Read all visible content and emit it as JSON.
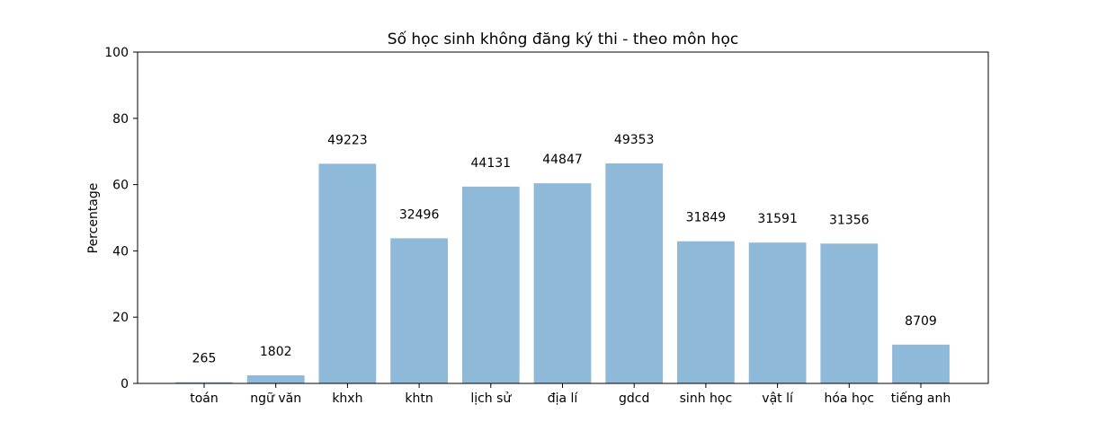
{
  "chart_data": {
    "type": "bar",
    "title": "Số học sinh không đăng ký thi - theo môn học",
    "xlabel": "",
    "ylabel": "Percentage",
    "ylim": [
      0,
      100
    ],
    "yticks": [
      0,
      20,
      40,
      60,
      80,
      100
    ],
    "categories": [
      "toán",
      "ngữ văn",
      "khxh",
      "khtn",
      "lịch sử",
      "địa lí",
      "gdcd",
      "sinh học",
      "vật lí",
      "hóa học",
      "tiếng anh"
    ],
    "values": [
      0.36,
      2.43,
      66.3,
      43.8,
      59.4,
      60.4,
      66.4,
      42.9,
      42.5,
      42.2,
      11.7
    ],
    "data_labels": [
      "265",
      "1802",
      "49223",
      "32496",
      "44131",
      "44847",
      "49353",
      "31849",
      "31591",
      "31356",
      "8709"
    ],
    "bar_color": "#8fb9d8",
    "grid": false,
    "legend": "none"
  }
}
